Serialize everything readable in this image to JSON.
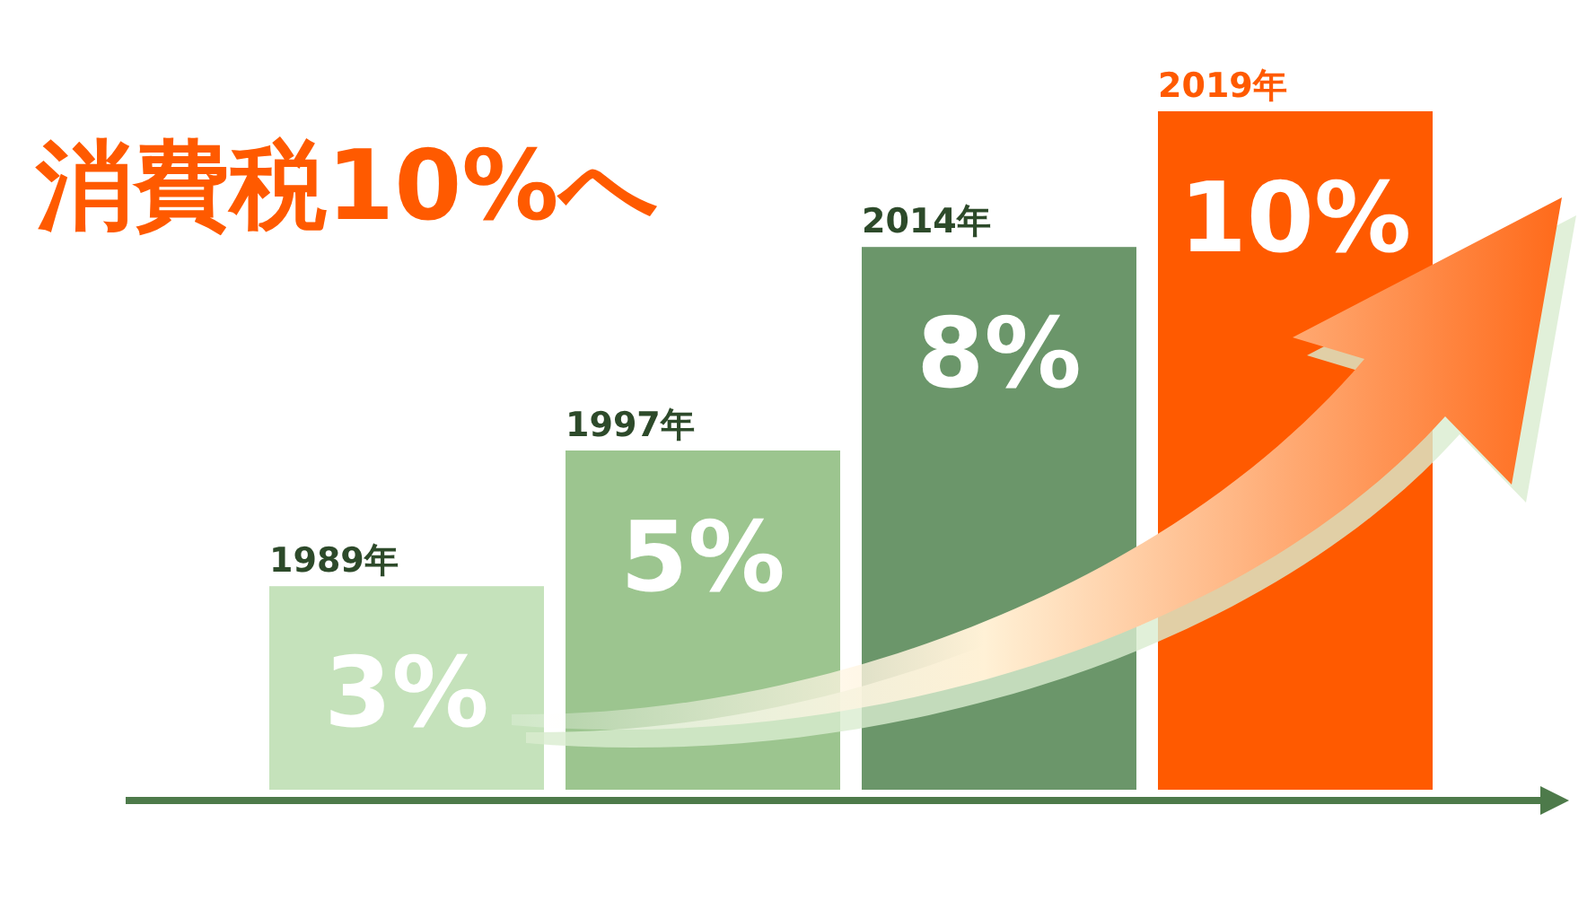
{
  "chart_data": {
    "type": "bar",
    "title": "消費税10%へ",
    "categories": [
      "1989年",
      "1997年",
      "2014年",
      "2019年"
    ],
    "values": [
      3,
      5,
      8,
      10
    ],
    "colors": [
      "#c5e2bb",
      "#9cc58f",
      "#6b966a",
      "#ff5a00"
    ],
    "value_labels": [
      "3%",
      "5%",
      "8%",
      "10%"
    ]
  }
}
